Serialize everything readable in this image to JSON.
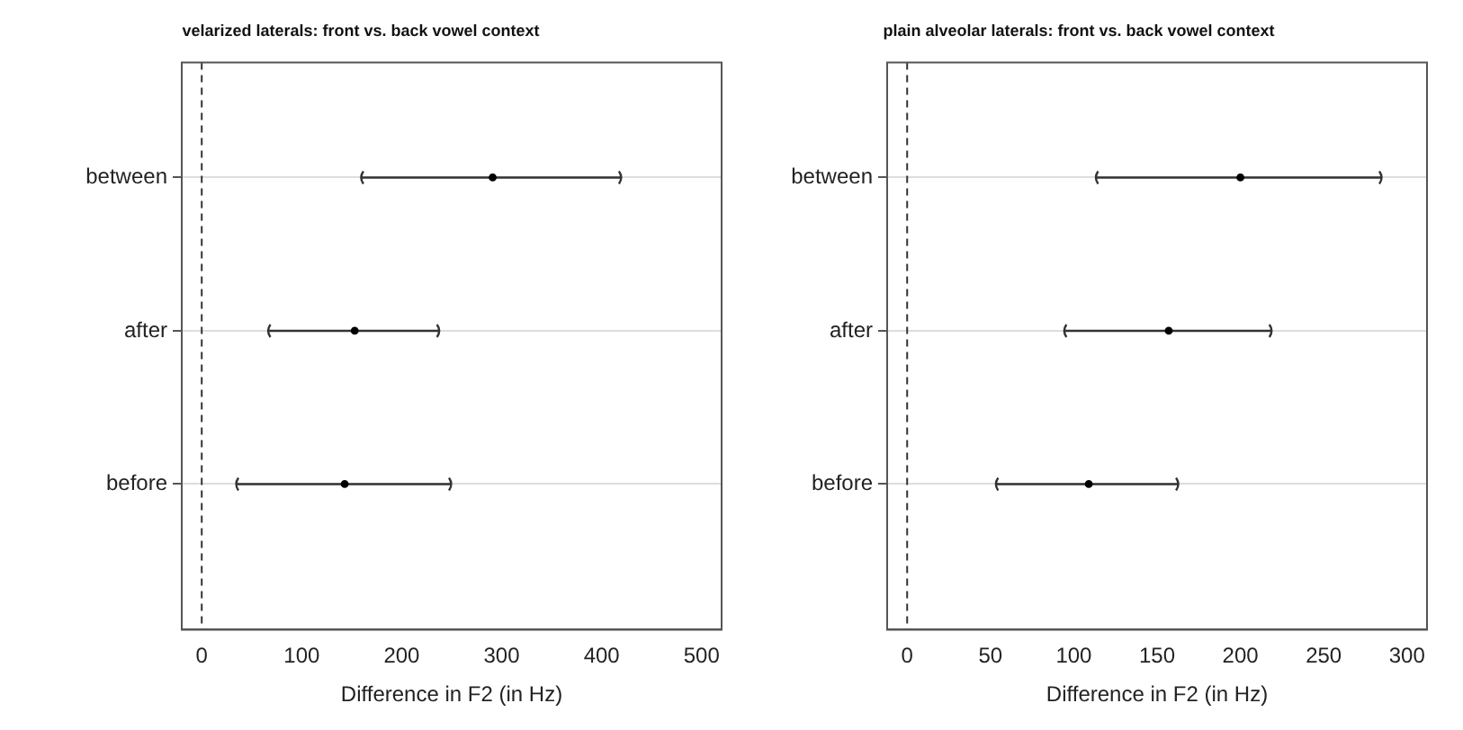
{
  "chart_data": [
    {
      "type": "scatter",
      "orientation": "horizontal",
      "title": "velarized laterals: front vs. back vowel context",
      "xlabel": "Difference in F2 (in Hz)",
      "categories": [
        "between",
        "after",
        "before"
      ],
      "values": [
        291,
        153,
        143
      ],
      "errors": [
        [
          159,
          420
        ],
        [
          66,
          238
        ],
        [
          34,
          250
        ]
      ],
      "color": "#000000",
      "xlim": [
        -20,
        520
      ],
      "xticks": [
        0,
        100,
        200,
        300,
        400,
        500
      ],
      "grid": "y",
      "marker": "circle",
      "ref_lines": [
        {
          "axis": "x",
          "value": 0,
          "line_style": "dashed",
          "color": "#333333"
        }
      ]
    },
    {
      "type": "scatter",
      "orientation": "horizontal",
      "title": "plain alveolar laterals: front vs. back vowel context",
      "xlabel": "Difference in F2 (in Hz)",
      "categories": [
        "between",
        "after",
        "before"
      ],
      "values": [
        200,
        157,
        109
      ],
      "errors": [
        [
          113,
          285
        ],
        [
          94,
          219
        ],
        [
          53,
          163
        ]
      ],
      "color": "#000000",
      "xlim": [
        -12,
        312
      ],
      "xticks": [
        0,
        50,
        100,
        150,
        200,
        250,
        300
      ],
      "grid": "y",
      "marker": "circle",
      "ref_lines": [
        {
          "axis": "x",
          "value": 0,
          "line_style": "dashed",
          "color": "#333333"
        }
      ]
    }
  ]
}
